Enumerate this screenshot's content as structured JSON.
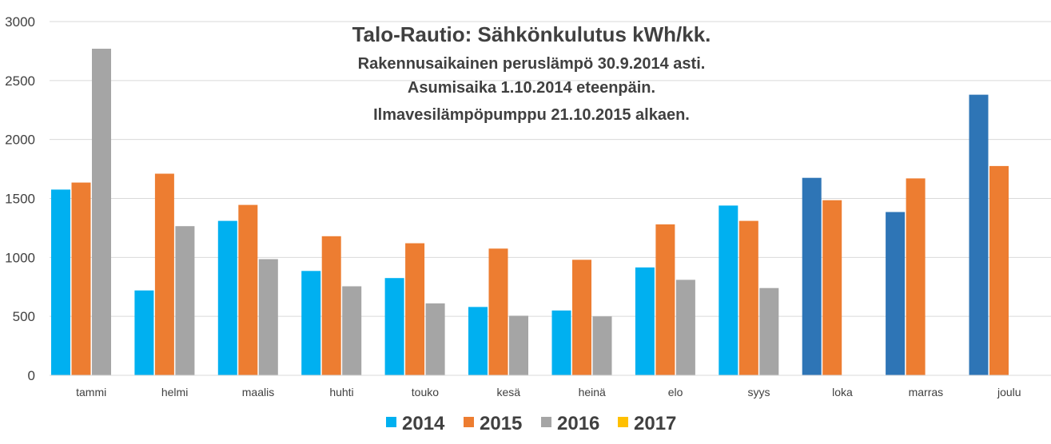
{
  "chart_data": {
    "type": "bar",
    "title": "Talo-Rautio: Sähkönkulutus kWh/kk.",
    "subtitle_lines": [
      "Rakennusaikainen peruslämpö 30.9.2014 asti.",
      "Asumisaika 1.10.2014 eteenpäin.",
      "Ilmavesilämpöpumppu 21.10.2015 alkaen."
    ],
    "categories": [
      "tammi",
      "helmi",
      "maalis",
      "huhti",
      "touko",
      "kesä",
      "heinä",
      "elo",
      "syys",
      "loka",
      "marras",
      "joulu"
    ],
    "series": [
      {
        "name": "2014",
        "color": "#00b0f0",
        "values": [
          1575,
          720,
          1310,
          885,
          825,
          580,
          550,
          915,
          1440,
          1675,
          1385,
          2380
        ],
        "highlight_color": "#2e75b6",
        "highlight_from_index": 9
      },
      {
        "name": "2015",
        "color": "#ed7d31",
        "values": [
          1635,
          1710,
          1445,
          1180,
          1120,
          1075,
          980,
          1280,
          1310,
          1485,
          1670,
          1775
        ]
      },
      {
        "name": "2016",
        "color": "#a5a5a5",
        "values": [
          2770,
          1265,
          985,
          755,
          610,
          505,
          500,
          810,
          740,
          null,
          null,
          null
        ]
      },
      {
        "name": "2017",
        "color": "#ffc000",
        "values": [
          null,
          null,
          null,
          null,
          null,
          null,
          null,
          null,
          null,
          null,
          null,
          null
        ]
      }
    ],
    "ylim": [
      0,
      3000
    ],
    "yticks": [
      0,
      500,
      1000,
      1500,
      2000,
      2500,
      3000
    ],
    "xlabel": "",
    "ylabel": "",
    "grid": true,
    "legend_position": "bottom"
  }
}
